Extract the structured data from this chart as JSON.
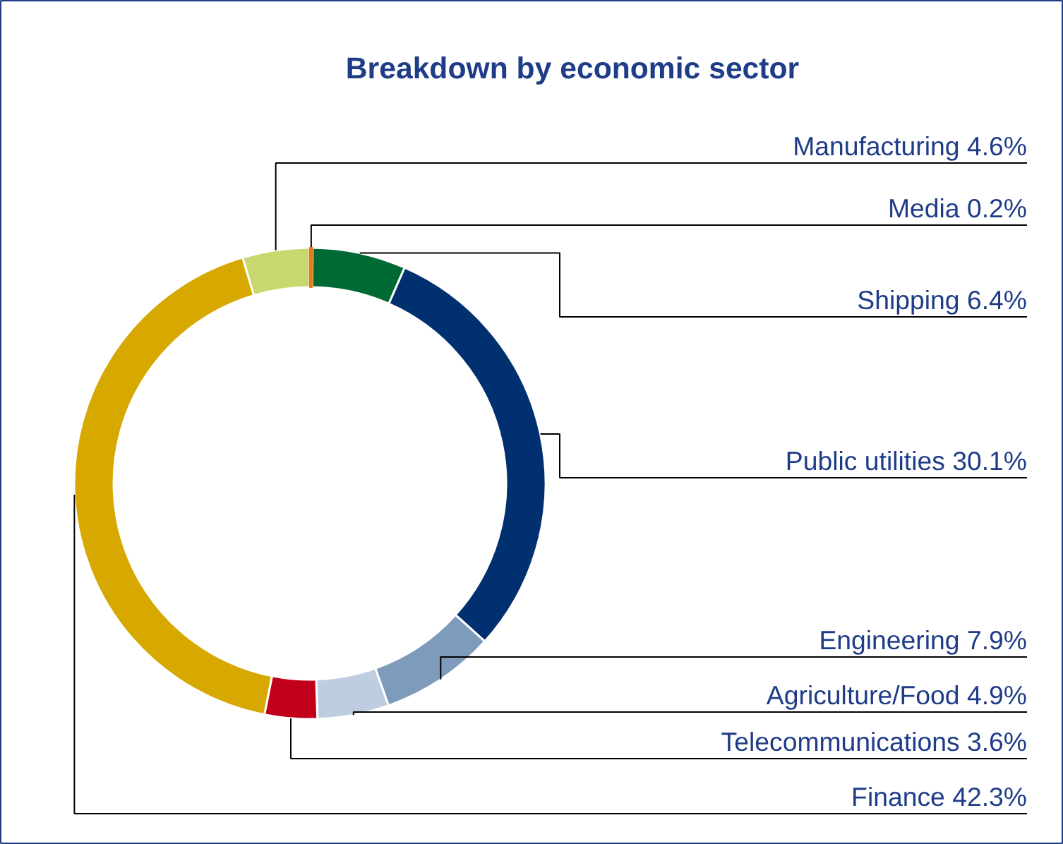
{
  "chart_data": {
    "type": "donut",
    "title": "Breakdown by economic sector",
    "categories": [
      "Manufacturing",
      "Media",
      "Shipping",
      "Public utilities",
      "Engineering",
      "Agriculture/Food",
      "Telecommunications",
      "Finance"
    ],
    "values": [
      4.6,
      0.2,
      6.4,
      30.1,
      7.9,
      4.9,
      3.6,
      42.3
    ],
    "value_labels": [
      "4.6%",
      "0.2%",
      "6.4%",
      "30.1%",
      "7.9%",
      "4.9%",
      "3.6%",
      "42.3%"
    ],
    "colors": [
      "#c8d86e",
      "#e07b20",
      "#006a35",
      "#003070",
      "#7f9bbb",
      "#bfcde0",
      "#c0001a",
      "#d6a800"
    ]
  }
}
